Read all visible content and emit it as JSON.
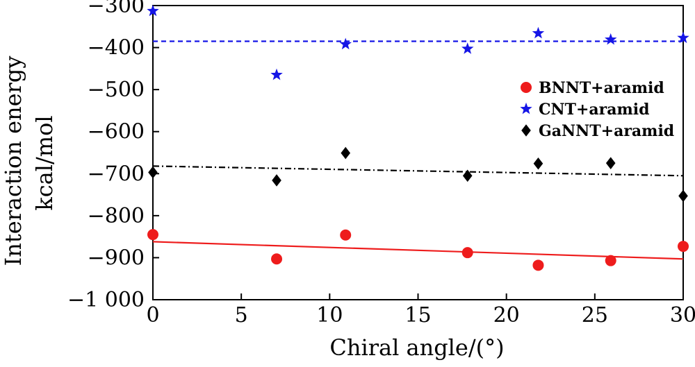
{
  "chart_data": {
    "type": "scatter",
    "xlabel": "Chiral angle/(°)",
    "ylabel_line1": "Interaction energy",
    "ylabel_line2": "kcal/mol",
    "xlim": [
      0,
      30
    ],
    "ylim": [
      -1000,
      -300
    ],
    "x_ticks": [
      0,
      5,
      10,
      15,
      20,
      25,
      30
    ],
    "x_tick_labels": [
      "0",
      "5",
      "10",
      "15",
      "20",
      "25",
      "30"
    ],
    "y_ticks": [
      -1000,
      -900,
      -800,
      -700,
      -600,
      -500,
      -400,
      -300
    ],
    "y_tick_labels": [
      "−1 000",
      "−900",
      "−800",
      "−700",
      "−600",
      "−500",
      "−400",
      "−300"
    ],
    "grid": false,
    "legend_position": "right",
    "series": [
      {
        "name": "BNNT+aramid",
        "color": "#ee1c1c",
        "marker": "circle",
        "x": [
          0,
          7,
          10.9,
          17.8,
          21.8,
          25.9,
          30
        ],
        "y": [
          -845,
          -903,
          -846,
          -888,
          -918,
          -907,
          -873
        ],
        "fit": {
          "x": [
            0,
            30
          ],
          "y": [
            -862,
            -903
          ],
          "style": "solid"
        }
      },
      {
        "name": "CNT+aramid",
        "color": "#1515e6",
        "marker": "star",
        "x": [
          0,
          7,
          10.9,
          17.8,
          21.8,
          25.9,
          30
        ],
        "y": [
          -313,
          -465,
          -392,
          -403,
          -366,
          -381,
          -377
        ],
        "fit": {
          "x": [
            0,
            30
          ],
          "y": [
            -385,
            -385
          ],
          "style": "dashed"
        }
      },
      {
        "name": "GaNNT+aramid",
        "color": "#000000",
        "marker": "diamond",
        "x": [
          0,
          7,
          10.9,
          17.8,
          21.8,
          25.9,
          30
        ],
        "y": [
          -697,
          -716,
          -651,
          -705,
          -676,
          -675,
          -753
        ],
        "fit": {
          "x": [
            0,
            30
          ],
          "y": [
            -682,
            -705
          ],
          "style": "dashdot"
        }
      }
    ]
  }
}
